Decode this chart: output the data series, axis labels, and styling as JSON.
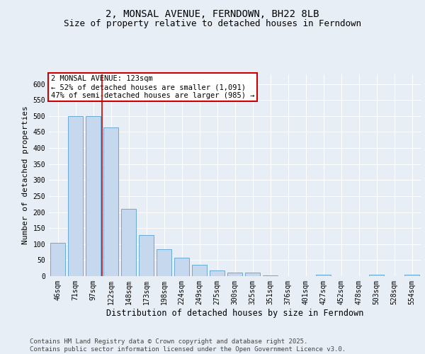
{
  "title": "2, MONSAL AVENUE, FERNDOWN, BH22 8LB",
  "subtitle": "Size of property relative to detached houses in Ferndown",
  "xlabel": "Distribution of detached houses by size in Ferndown",
  "ylabel": "Number of detached properties",
  "categories": [
    "46sqm",
    "71sqm",
    "97sqm",
    "122sqm",
    "148sqm",
    "173sqm",
    "198sqm",
    "224sqm",
    "249sqm",
    "275sqm",
    "300sqm",
    "325sqm",
    "351sqm",
    "376sqm",
    "401sqm",
    "427sqm",
    "452sqm",
    "478sqm",
    "503sqm",
    "528sqm",
    "554sqm"
  ],
  "values": [
    105,
    500,
    500,
    465,
    210,
    128,
    83,
    57,
    35,
    17,
    10,
    10,
    3,
    0,
    0,
    4,
    0,
    0,
    5,
    0,
    5
  ],
  "bar_color": "#c5d8ee",
  "bar_edge_color": "#6aaad4",
  "red_line_x": 2.5,
  "annotation_text": "2 MONSAL AVENUE: 123sqm\n← 52% of detached houses are smaller (1,091)\n47% of semi-detached houses are larger (985) →",
  "annotation_box_color": "#ffffff",
  "annotation_box_edge_color": "#cc0000",
  "ylim": [
    0,
    630
  ],
  "yticks": [
    0,
    50,
    100,
    150,
    200,
    250,
    300,
    350,
    400,
    450,
    500,
    550,
    600
  ],
  "background_color": "#e8eef5",
  "plot_bg_color": "#e8eef5",
  "footer_text": "Contains HM Land Registry data © Crown copyright and database right 2025.\nContains public sector information licensed under the Open Government Licence v3.0.",
  "title_fontsize": 10,
  "subtitle_fontsize": 9,
  "xlabel_fontsize": 8.5,
  "ylabel_fontsize": 8,
  "tick_fontsize": 7,
  "annotation_fontsize": 7.5,
  "footer_fontsize": 6.5
}
